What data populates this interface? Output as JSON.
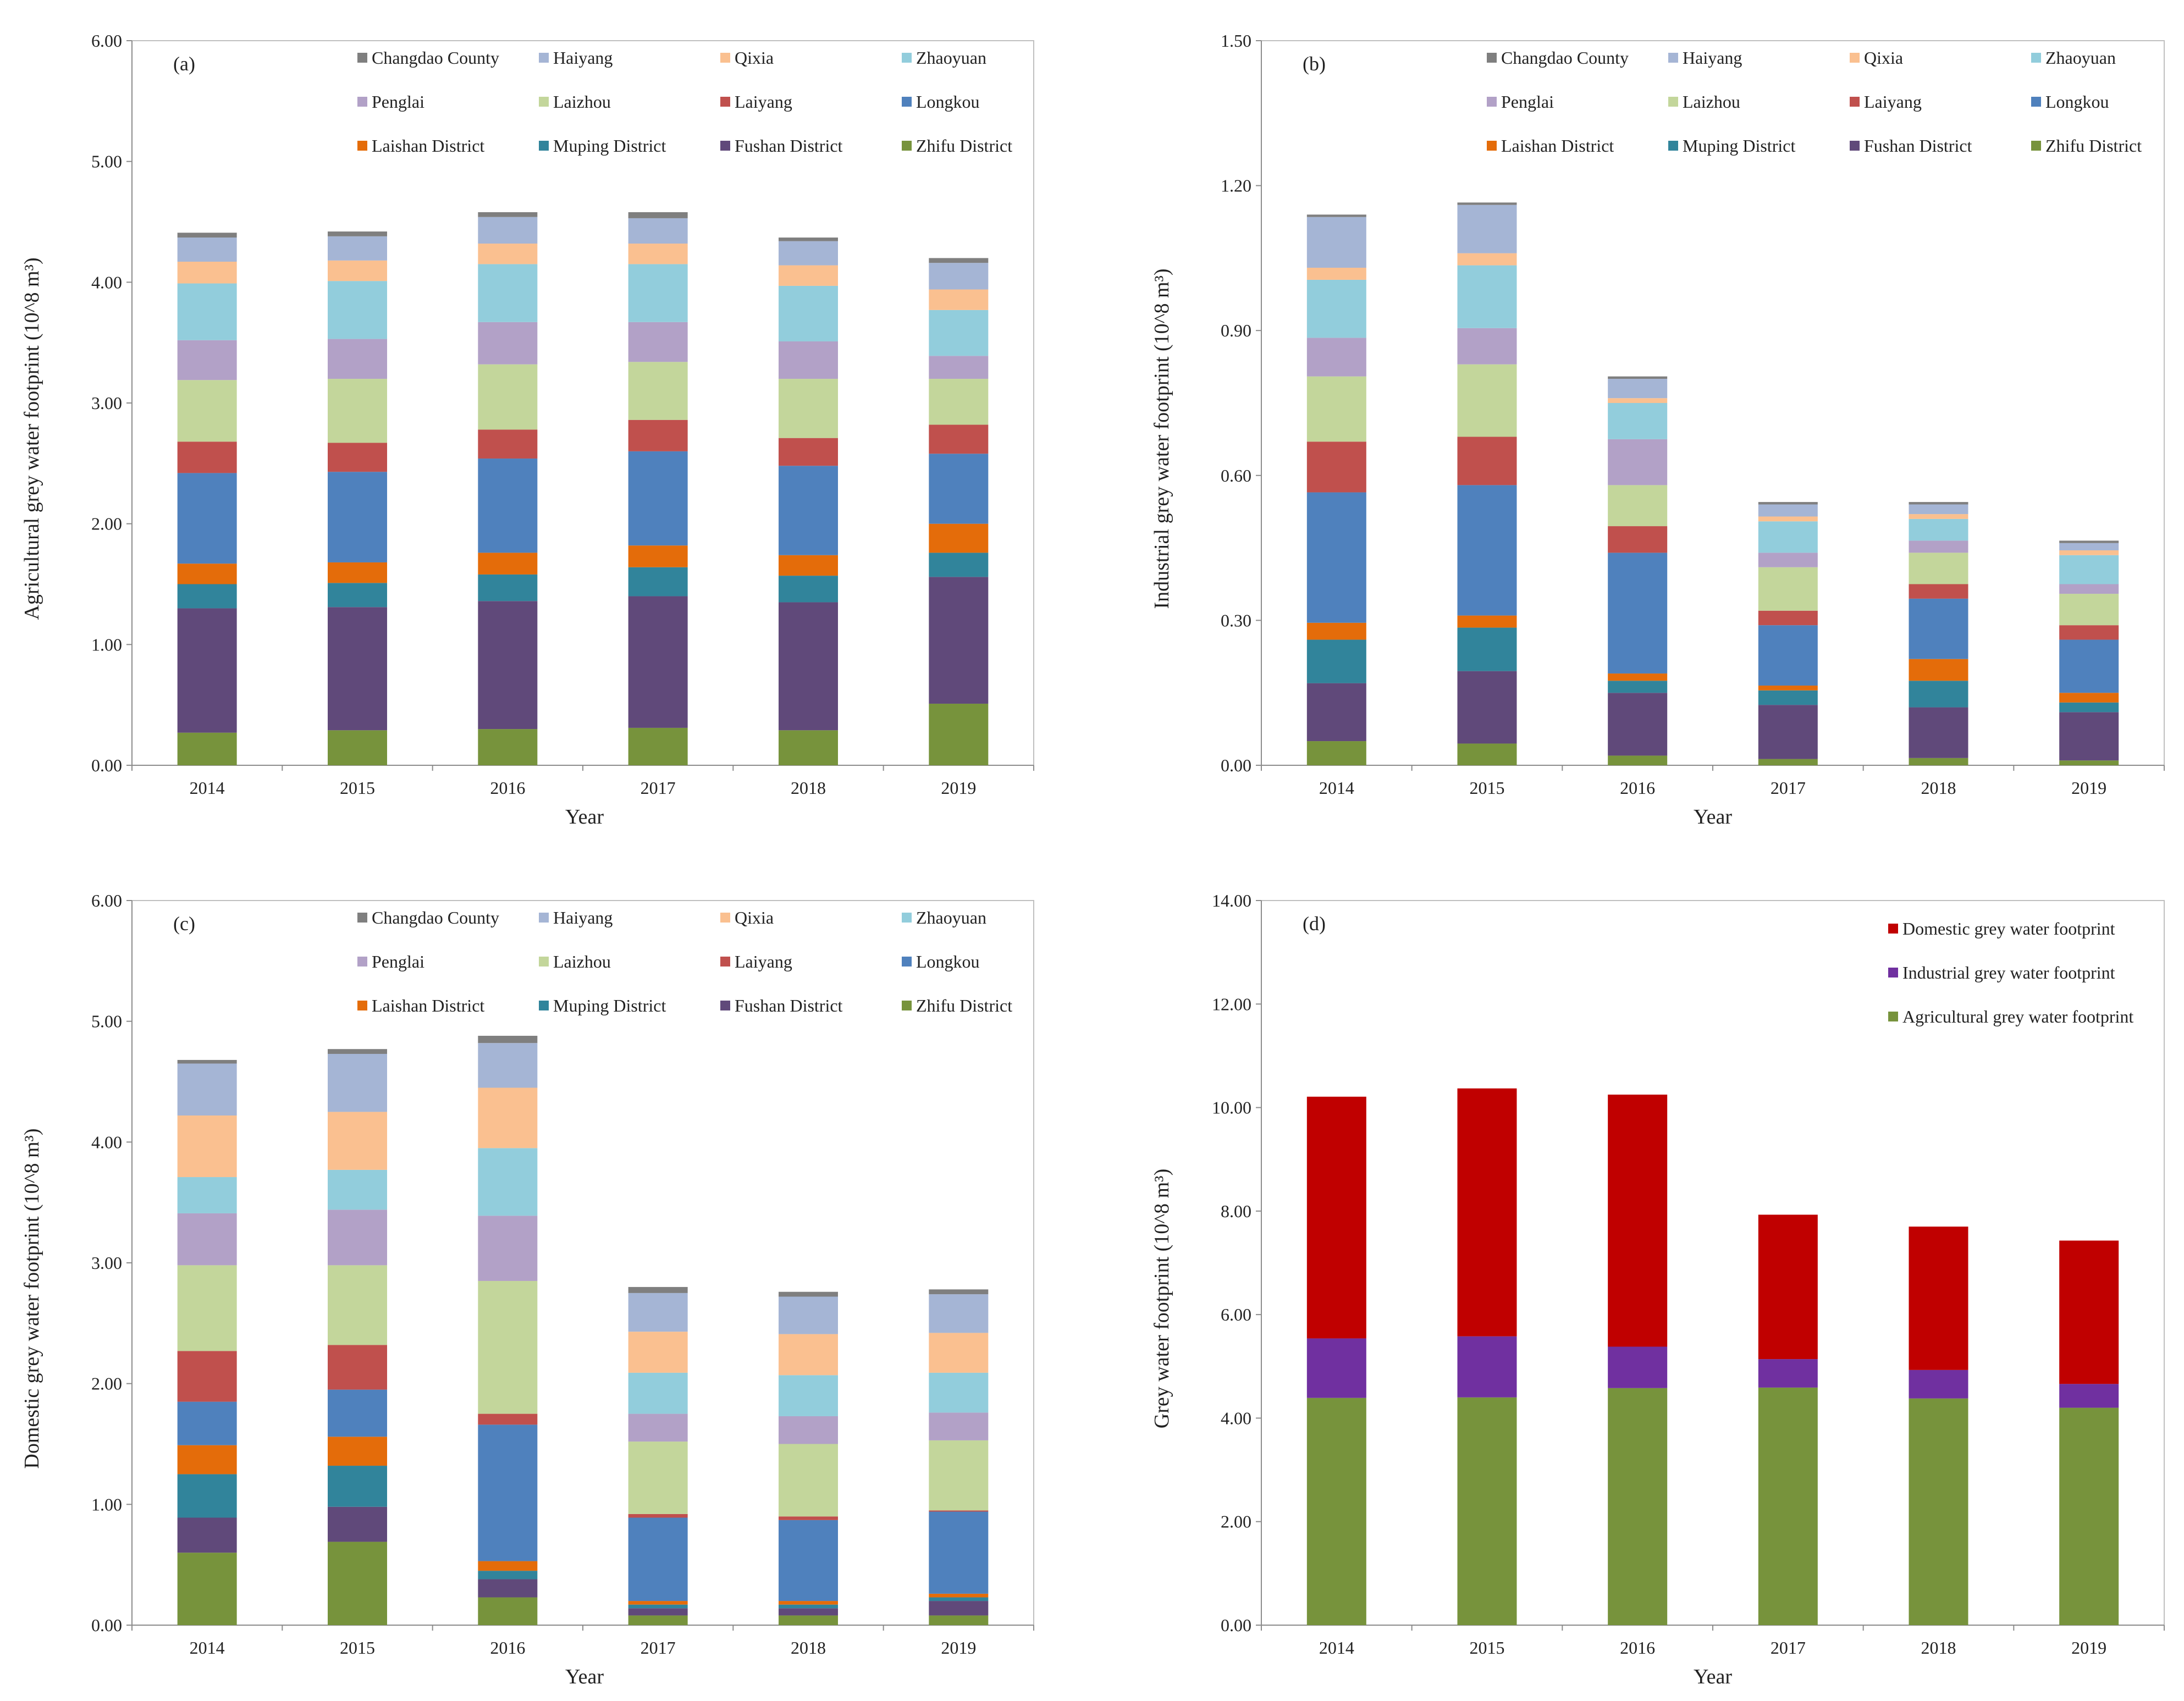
{
  "districts": [
    "Zhifu District",
    "Fushan District",
    "Muping District",
    "Laishan District",
    "Longkou",
    "Laiyang",
    "Laizhou",
    "Penglai",
    "Zhaoyuan",
    "Qixia",
    "Haiyang",
    "Changdao County"
  ],
  "colors": {
    "Zhifu District": "#77933c",
    "Fushan District": "#60497a",
    "Muping District": "#31849b",
    "Laishan District": "#e46c0a",
    "Longkou": "#4f81bd",
    "Laiyang": "#c0504d",
    "Laizhou": "#c3d69b",
    "Penglai": "#b2a1c7",
    "Zhaoyuan": "#92cddc",
    "Qixia": "#fac090",
    "Haiyang": "#a5b5d5",
    "Changdao County": "#7f7f7f",
    "Domestic grey water footprint": "#c00000",
    "Industrial grey water footprint": "#7030a0",
    "Agricultural grey water footprint": "#77933c"
  },
  "chart_data": [
    {
      "type": "bar",
      "stacked": true,
      "panel_label": "(a)",
      "xlabel": "Year",
      "ylabel": "Agricultural grey water footprint (10^8 m³)",
      "categories": [
        "2014",
        "2015",
        "2016",
        "2017",
        "2018",
        "2019"
      ],
      "ylim": [
        0,
        6
      ],
      "yticks": [
        "0.00",
        "1.00",
        "2.00",
        "3.00",
        "4.00",
        "5.00",
        "6.00"
      ],
      "legend_order": [
        "Changdao County",
        "Haiyang",
        "Qixia",
        "Zhaoyuan",
        "Penglai",
        "Laizhou",
        "Laiyang",
        "Longkou",
        "Laishan District",
        "Muping District",
        "Fushan District",
        "Zhifu District"
      ],
      "series": [
        {
          "name": "Zhifu District",
          "values": [
            0.27,
            0.29,
            0.3,
            0.31,
            0.29,
            0.51
          ]
        },
        {
          "name": "Fushan District",
          "values": [
            1.03,
            1.02,
            1.06,
            1.09,
            1.06,
            1.05
          ]
        },
        {
          "name": "Muping District",
          "values": [
            0.2,
            0.2,
            0.22,
            0.24,
            0.22,
            0.2
          ]
        },
        {
          "name": "Laishan District",
          "values": [
            0.17,
            0.17,
            0.18,
            0.18,
            0.17,
            0.24
          ]
        },
        {
          "name": "Longkou",
          "values": [
            0.75,
            0.75,
            0.78,
            0.78,
            0.74,
            0.58
          ]
        },
        {
          "name": "Laiyang",
          "values": [
            0.26,
            0.24,
            0.24,
            0.26,
            0.23,
            0.24
          ]
        },
        {
          "name": "Laizhou",
          "values": [
            0.51,
            0.53,
            0.54,
            0.48,
            0.49,
            0.38
          ]
        },
        {
          "name": "Penglai",
          "values": [
            0.33,
            0.33,
            0.35,
            0.33,
            0.31,
            0.19
          ]
        },
        {
          "name": "Zhaoyuan",
          "values": [
            0.47,
            0.48,
            0.48,
            0.48,
            0.46,
            0.38
          ]
        },
        {
          "name": "Qixia",
          "values": [
            0.18,
            0.17,
            0.17,
            0.17,
            0.17,
            0.17
          ]
        },
        {
          "name": "Haiyang",
          "values": [
            0.2,
            0.2,
            0.22,
            0.21,
            0.2,
            0.22
          ]
        },
        {
          "name": "Changdao County",
          "values": [
            0.04,
            0.04,
            0.04,
            0.05,
            0.03,
            0.04
          ]
        }
      ]
    },
    {
      "type": "bar",
      "stacked": true,
      "panel_label": "(b)",
      "xlabel": "Year",
      "ylabel": "Industrial grey water footprint (10^8 m³)",
      "categories": [
        "2014",
        "2015",
        "2016",
        "2017",
        "2018",
        "2019"
      ],
      "ylim": [
        0,
        1.5
      ],
      "yticks": [
        "0.00",
        "0.30",
        "0.60",
        "0.90",
        "1.20",
        "1.50"
      ],
      "legend_order": [
        "Changdao County",
        "Haiyang",
        "Qixia",
        "Zhaoyuan",
        "Penglai",
        "Laizhou",
        "Laiyang",
        "Longkou",
        "Laishan District",
        "Muping District",
        "Fushan District",
        "Zhifu District"
      ],
      "series": [
        {
          "name": "Zhifu District",
          "values": [
            0.05,
            0.045,
            0.02,
            0.013,
            0.015,
            0.01
          ]
        },
        {
          "name": "Fushan District",
          "values": [
            0.12,
            0.15,
            0.13,
            0.112,
            0.105,
            0.1
          ]
        },
        {
          "name": "Muping District",
          "values": [
            0.09,
            0.09,
            0.025,
            0.03,
            0.055,
            0.02
          ]
        },
        {
          "name": "Laishan District",
          "values": [
            0.035,
            0.025,
            0.015,
            0.01,
            0.045,
            0.02
          ]
        },
        {
          "name": "Longkou",
          "values": [
            0.27,
            0.27,
            0.25,
            0.125,
            0.125,
            0.11
          ]
        },
        {
          "name": "Laiyang",
          "values": [
            0.105,
            0.1,
            0.055,
            0.03,
            0.03,
            0.03
          ]
        },
        {
          "name": "Laizhou",
          "values": [
            0.135,
            0.15,
            0.085,
            0.09,
            0.065,
            0.065
          ]
        },
        {
          "name": "Penglai",
          "values": [
            0.08,
            0.075,
            0.095,
            0.03,
            0.025,
            0.02
          ]
        },
        {
          "name": "Zhaoyuan",
          "values": [
            0.12,
            0.13,
            0.075,
            0.065,
            0.045,
            0.06
          ]
        },
        {
          "name": "Qixia",
          "values": [
            0.025,
            0.025,
            0.01,
            0.01,
            0.01,
            0.01
          ]
        },
        {
          "name": "Haiyang",
          "values": [
            0.105,
            0.1,
            0.04,
            0.025,
            0.02,
            0.015
          ]
        },
        {
          "name": "Changdao County",
          "values": [
            0.005,
            0.005,
            0.005,
            0.005,
            0.005,
            0.005
          ]
        }
      ]
    },
    {
      "type": "bar",
      "stacked": true,
      "panel_label": "(c)",
      "xlabel": "Year",
      "ylabel": "Domestic grey water footprint (10^8 m³)",
      "categories": [
        "2014",
        "2015",
        "2016",
        "2017",
        "2018",
        "2019"
      ],
      "ylim": [
        0,
        6
      ],
      "yticks": [
        "0.00",
        "1.00",
        "2.00",
        "3.00",
        "4.00",
        "5.00",
        "6.00"
      ],
      "legend_order": [
        "Changdao County",
        "Haiyang",
        "Qixia",
        "Zhaoyuan",
        "Penglai",
        "Laizhou",
        "Laiyang",
        "Longkou",
        "Laishan District",
        "Muping District",
        "Fushan District",
        "Zhifu District"
      ],
      "series": [
        {
          "name": "Zhifu District",
          "values": [
            0.6,
            0.69,
            0.23,
            0.08,
            0.08,
            0.08
          ]
        },
        {
          "name": "Fushan District",
          "values": [
            0.29,
            0.29,
            0.15,
            0.06,
            0.06,
            0.12
          ]
        },
        {
          "name": "Muping District",
          "values": [
            0.36,
            0.34,
            0.07,
            0.03,
            0.03,
            0.03
          ]
        },
        {
          "name": "Laishan District",
          "values": [
            0.24,
            0.24,
            0.08,
            0.03,
            0.03,
            0.03
          ]
        },
        {
          "name": "Longkou",
          "values": [
            0.36,
            0.39,
            1.13,
            0.69,
            0.67,
            0.68
          ]
        },
        {
          "name": "Laiyang",
          "values": [
            0.42,
            0.37,
            0.09,
            0.03,
            0.03,
            0.01
          ]
        },
        {
          "name": "Laizhou",
          "values": [
            0.71,
            0.66,
            1.1,
            0.6,
            0.6,
            0.58
          ]
        },
        {
          "name": "Penglai",
          "values": [
            0.43,
            0.46,
            0.54,
            0.23,
            0.23,
            0.23
          ]
        },
        {
          "name": "Zhaoyuan",
          "values": [
            0.3,
            0.33,
            0.56,
            0.34,
            0.34,
            0.33
          ]
        },
        {
          "name": "Qixia",
          "values": [
            0.51,
            0.48,
            0.5,
            0.34,
            0.34,
            0.33
          ]
        },
        {
          "name": "Haiyang",
          "values": [
            0.43,
            0.48,
            0.37,
            0.32,
            0.31,
            0.32
          ]
        },
        {
          "name": "Changdao County",
          "values": [
            0.03,
            0.04,
            0.06,
            0.05,
            0.04,
            0.04
          ]
        }
      ]
    },
    {
      "type": "bar",
      "stacked": true,
      "panel_label": "(d)",
      "xlabel": "Year",
      "ylabel": "Grey water footprint (10^8 m³)",
      "categories": [
        "2014",
        "2015",
        "2016",
        "2017",
        "2018",
        "2019"
      ],
      "ylim": [
        0,
        14
      ],
      "yticks": [
        "0.00",
        "2.00",
        "4.00",
        "6.00",
        "8.00",
        "10.00",
        "12.00",
        "14.00"
      ],
      "legend_order": [
        "Domestic grey water footprint",
        "Industrial grey water footprint",
        "Agricultural grey water footprint"
      ],
      "series": [
        {
          "name": "Agricultural grey water footprint",
          "values": [
            4.39,
            4.4,
            4.58,
            4.59,
            4.38,
            4.2
          ]
        },
        {
          "name": "Industrial grey water footprint",
          "values": [
            1.15,
            1.18,
            0.8,
            0.55,
            0.55,
            0.46
          ]
        },
        {
          "name": "Domestic grey water footprint",
          "values": [
            4.67,
            4.79,
            4.87,
            2.79,
            2.77,
            2.77
          ]
        }
      ]
    }
  ]
}
